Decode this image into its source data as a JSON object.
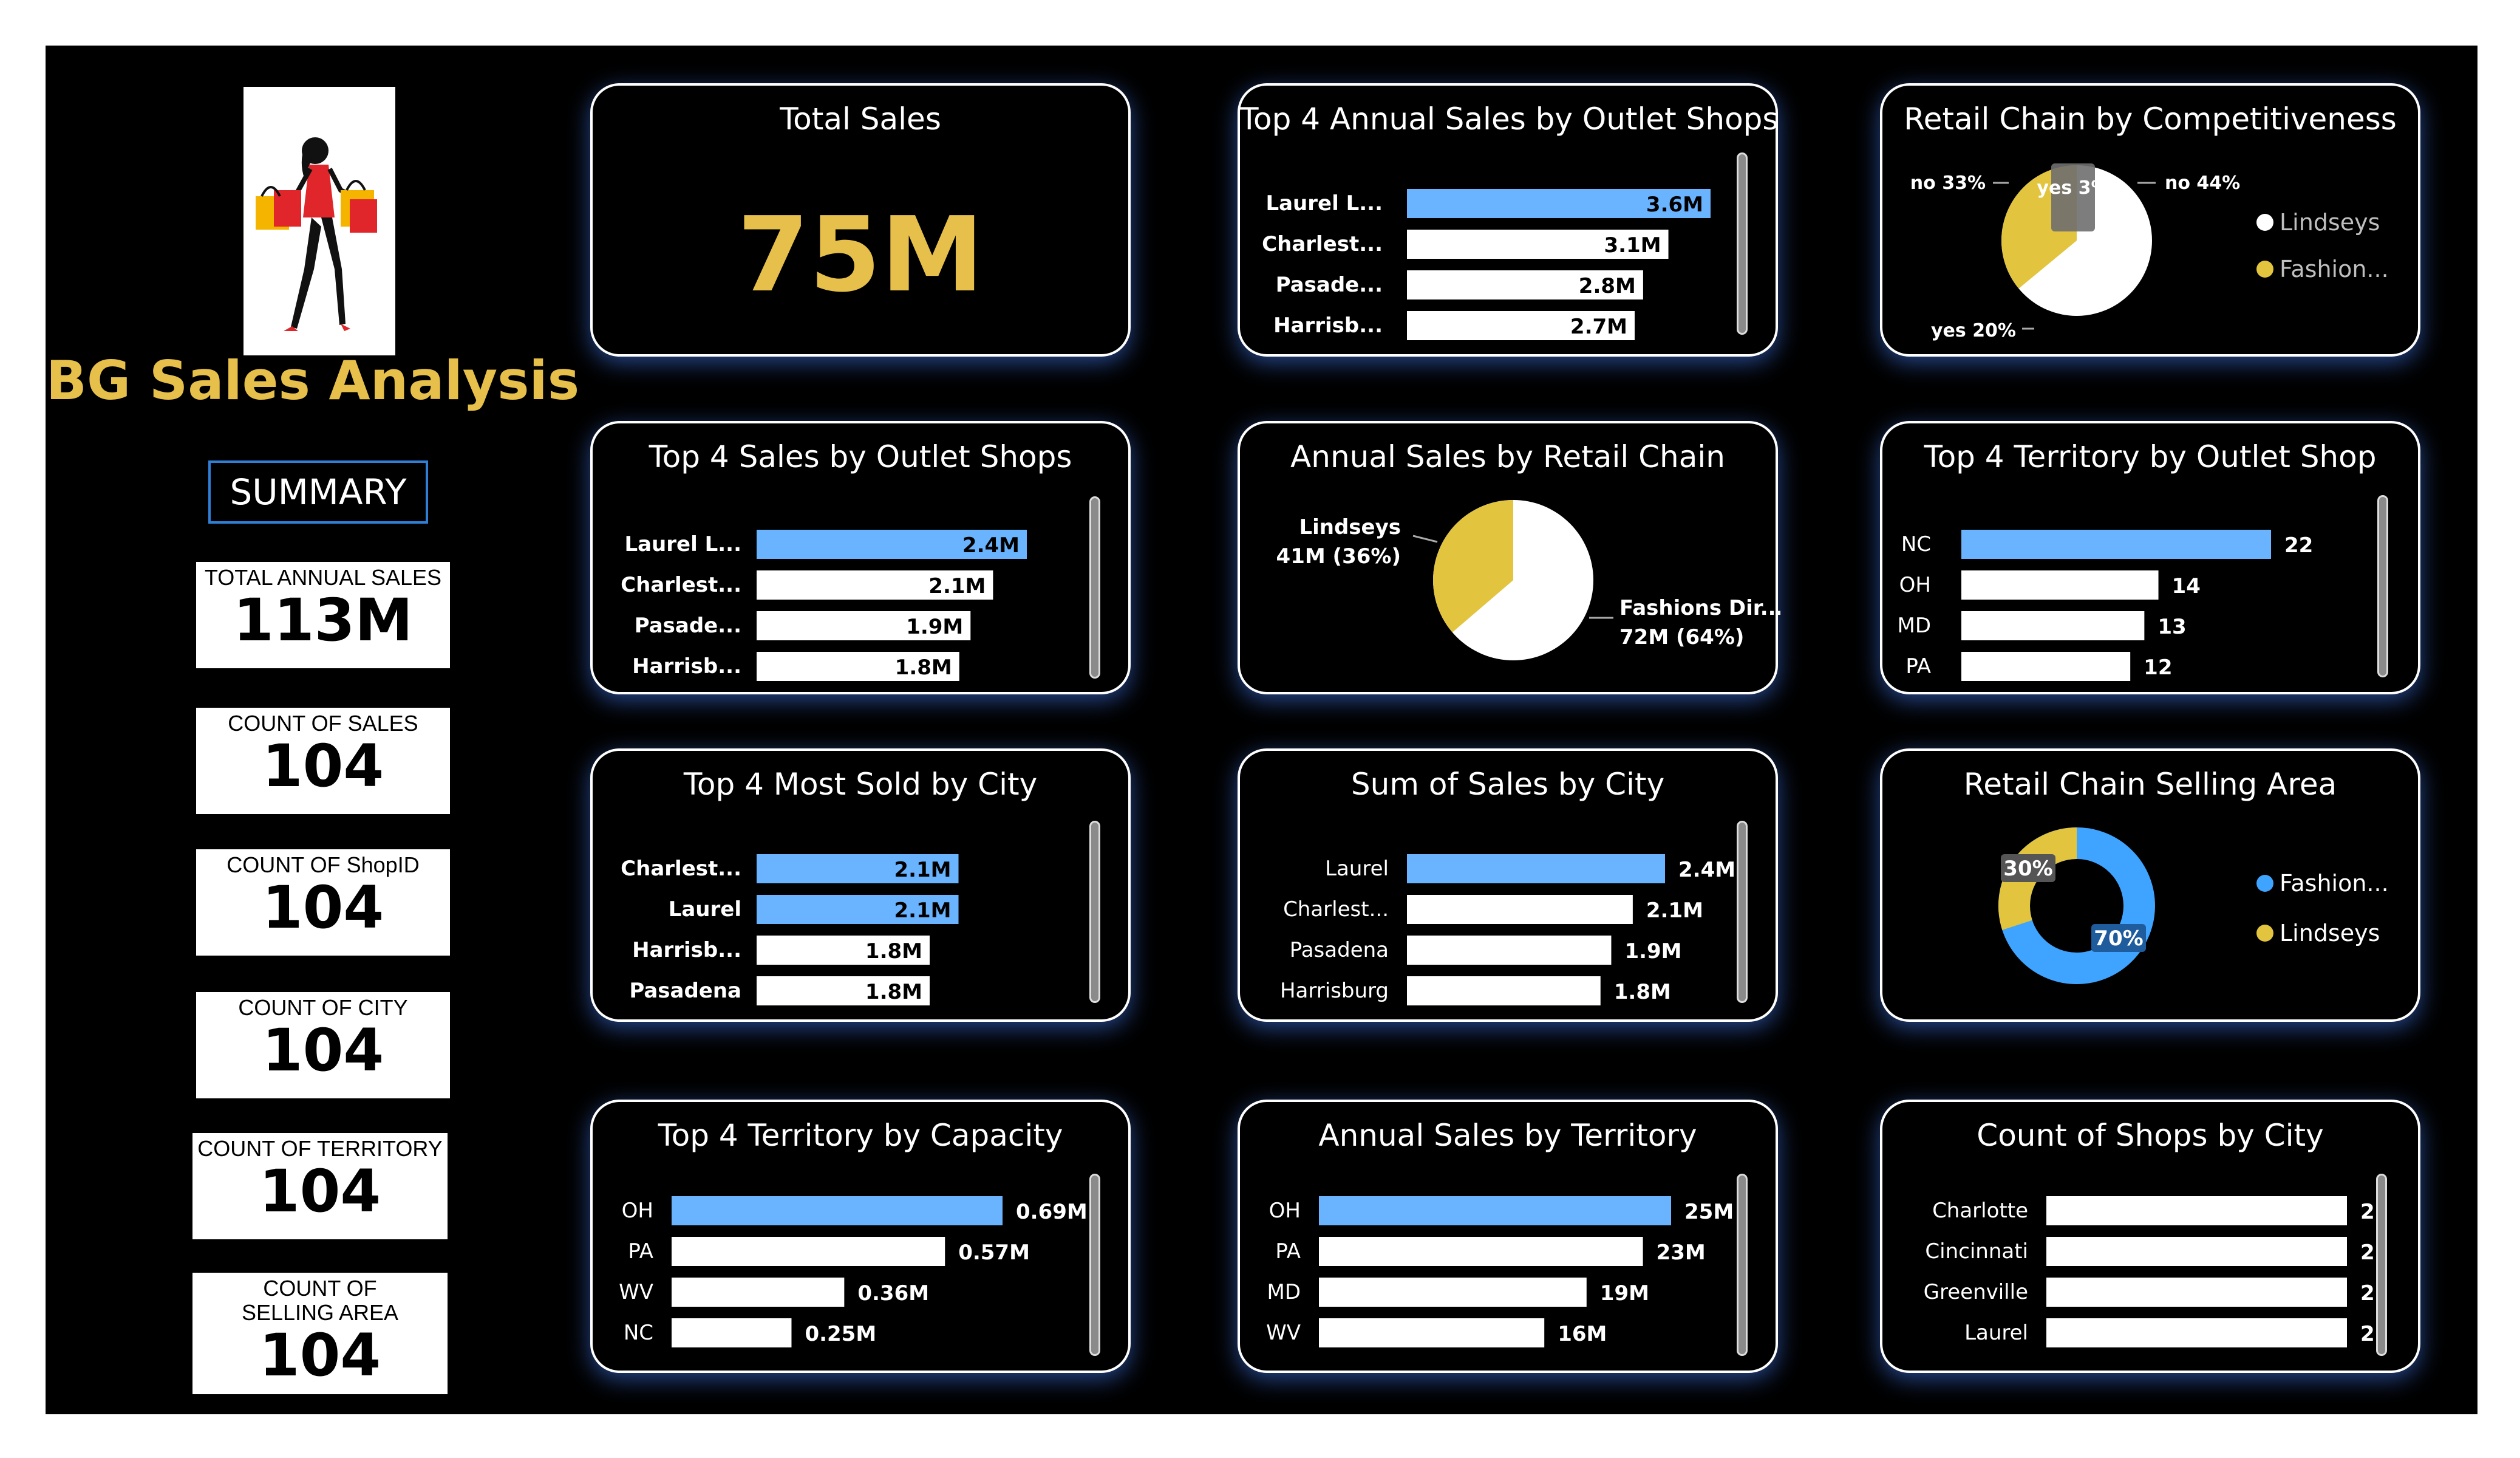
{
  "app": {
    "title": "BG Sales Analysis",
    "summary_label": "SUMMARY"
  },
  "kpis": [
    {
      "label": "TOTAL ANNUAL SALES",
      "value": "113M"
    },
    {
      "label": "COUNT OF SALES",
      "value": "104"
    },
    {
      "label": "COUNT OF ShopID",
      "value": "104"
    },
    {
      "label": "COUNT OF CITY",
      "value": "104"
    },
    {
      "label": "COUNT OF TERRITORY",
      "value": "104"
    },
    {
      "label": "COUNT OF SELLING AREA",
      "value": "104"
    }
  ],
  "colors": {
    "accent_blue": "#6ab4ff",
    "gold": "#e6c04a",
    "pie_gold": "#e2c43e",
    "donut_blue": "#3ea4ff",
    "bg": "#000000"
  },
  "total_sales": {
    "title": "Total Sales",
    "value": "75M"
  },
  "chart_data": [
    {
      "id": "c_annual_outlet",
      "type": "bar",
      "title": "Top 4 Annual Sales by Outlet Shops",
      "categories": [
        "Laurel L...",
        "Charlest...",
        "Pasade...",
        "Harrisb..."
      ],
      "values": [
        3.6,
        3.1,
        2.8,
        2.7
      ],
      "labels": [
        "3.6M",
        "3.1M",
        "2.8M",
        "2.7M"
      ],
      "xlim": [
        0,
        3.6
      ],
      "highlight": [
        0
      ]
    },
    {
      "id": "c_sales_outlet",
      "type": "bar",
      "title": "Top 4 Sales by Outlet Shops",
      "categories": [
        "Laurel L...",
        "Charlest...",
        "Pasade...",
        "Harrisb..."
      ],
      "values": [
        2.4,
        2.1,
        1.9,
        1.8
      ],
      "labels": [
        "2.4M",
        "2.1M",
        "1.9M",
        "1.8M"
      ],
      "xlim": [
        0,
        2.4
      ],
      "highlight": [
        0
      ]
    },
    {
      "id": "c_most_sold_city",
      "type": "bar",
      "title": "Top 4 Most Sold by City",
      "categories": [
        "Charlest...",
        "Laurel",
        "Harrisb...",
        "Pasadena"
      ],
      "values": [
        2.1,
        2.1,
        1.8,
        1.8
      ],
      "labels": [
        "2.1M",
        "2.1M",
        "1.8M",
        "1.8M"
      ],
      "xlim": [
        0,
        2.4
      ],
      "highlight": [
        0,
        1
      ]
    },
    {
      "id": "c_sum_city",
      "type": "bar",
      "title": "Sum of Sales by City",
      "categories": [
        "Laurel",
        "Charlest...",
        "Pasadena",
        "Harrisburg"
      ],
      "values": [
        2.4,
        2.1,
        1.9,
        1.8
      ],
      "labels": [
        "2.4M",
        "2.1M",
        "1.9M",
        "1.8M"
      ],
      "xlim": [
        0,
        2.4
      ],
      "highlight": [
        0
      ]
    },
    {
      "id": "c_territory_outlet",
      "type": "bar",
      "title": "Top 4 Territory by Outlet Shop",
      "categories": [
        "NC",
        "OH",
        "MD",
        "PA"
      ],
      "values": [
        22,
        14,
        13,
        12
      ],
      "labels": [
        "22",
        "14",
        "13",
        "12"
      ],
      "xlim": [
        0,
        22
      ],
      "highlight": [
        0
      ]
    },
    {
      "id": "c_territory_capacity",
      "type": "bar",
      "title": "Top 4 Territory by Capacity",
      "categories": [
        "OH",
        "PA",
        "WV",
        "NC"
      ],
      "values": [
        0.69,
        0.57,
        0.36,
        0.25
      ],
      "labels": [
        "0.69M",
        "0.57M",
        "0.36M",
        "0.25M"
      ],
      "xlim": [
        0,
        0.69
      ],
      "highlight": [
        0
      ]
    },
    {
      "id": "c_annual_territory",
      "type": "bar",
      "title": "Annual Sales by Territory",
      "categories": [
        "OH",
        "PA",
        "MD",
        "WV"
      ],
      "values": [
        25,
        23,
        19,
        16
      ],
      "labels": [
        "25M",
        "23M",
        "19M",
        "16M"
      ],
      "xlim": [
        0,
        25
      ],
      "highlight": [
        0
      ]
    },
    {
      "id": "c_shops_city",
      "type": "bar",
      "title": "Count of Shops by City",
      "categories": [
        "Charlotte",
        "Cincinnati",
        "Greenville",
        "Laurel"
      ],
      "values": [
        2,
        2,
        2,
        2
      ],
      "labels": [
        "2",
        "2",
        "2",
        "2"
      ],
      "xlim": [
        0,
        2
      ],
      "highlight": []
    },
    {
      "id": "c_annual_retail_chain",
      "type": "pie",
      "title": "Annual Sales by Retail Chain",
      "slices": [
        {
          "label": "Fashions Dir...",
          "value": 72,
          "value_label": "72M (64%)"
        },
        {
          "label": "Lindseys",
          "value": 41,
          "value_label": "41M (36%)"
        }
      ]
    },
    {
      "id": "c_competitiveness",
      "type": "pie",
      "title": "Retail Chain by Competitiveness",
      "slices": [
        {
          "label": "no 44%",
          "value": 44
        },
        {
          "label": "yes 20%",
          "value": 20
        },
        {
          "label": "no 33%",
          "value": 33
        },
        {
          "label": "yes 3%",
          "value": 3
        }
      ],
      "legend": [
        "Lindseys",
        "Fashion..."
      ]
    },
    {
      "id": "c_selling_area",
      "type": "donut",
      "title": "Retail Chain Selling Area",
      "slices": [
        {
          "label": "70%",
          "value": 70
        },
        {
          "label": "30%",
          "value": 30
        }
      ],
      "legend": [
        "Fashion...",
        "Lindseys"
      ]
    }
  ]
}
